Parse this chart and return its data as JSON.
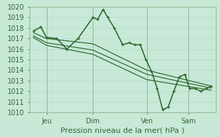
{
  "xlabel": "Pression niveau de la mer( hPa )",
  "bg_color": "#c8e8d8",
  "grid_color": "#b8d8c8",
  "line_color": "#2d6a2d",
  "ylim": [
    1010,
    1020
  ],
  "yticks": [
    1010,
    1011,
    1012,
    1013,
    1014,
    1015,
    1016,
    1017,
    1018,
    1019,
    1020
  ],
  "x_tick_positions": [
    0.09,
    0.34,
    0.63,
    0.855
  ],
  "x_tick_labels": [
    "Jeu",
    "Dim",
    "Ven",
    "Sam"
  ],
  "vline_positions": [
    0.09,
    0.34,
    0.63,
    0.855
  ],
  "series": [
    {
      "x": [
        0.02,
        0.06,
        0.09,
        0.145,
        0.2,
        0.26,
        0.34,
        0.365,
        0.395,
        0.42,
        0.455,
        0.5,
        0.535,
        0.565,
        0.595,
        0.625,
        0.655,
        0.685,
        0.715,
        0.745,
        0.775,
        0.805,
        0.835,
        0.86,
        0.89,
        0.92,
        0.95,
        0.975
      ],
      "y": [
        1017.7,
        1018.1,
        1017.1,
        1017.0,
        1016.0,
        1017.0,
        1019.0,
        1018.8,
        1019.75,
        1019.0,
        1018.0,
        1016.4,
        1016.6,
        1016.4,
        1016.4,
        1015.0,
        1013.9,
        1012.3,
        1010.25,
        1010.5,
        1012.0,
        1013.35,
        1013.6,
        1012.25,
        1012.25,
        1012.0,
        1012.25,
        1012.5
      ],
      "has_markers": true,
      "linewidth": 1.2
    },
    {
      "x": [
        0.02,
        0.09,
        0.34,
        0.63,
        0.975
      ],
      "y": [
        1017.55,
        1017.0,
        1016.5,
        1014.0,
        1012.5
      ],
      "has_markers": false,
      "linewidth": 0.9
    },
    {
      "x": [
        0.02,
        0.09,
        0.34,
        0.63,
        0.975
      ],
      "y": [
        1017.25,
        1016.6,
        1015.9,
        1013.6,
        1012.3
      ],
      "has_markers": false,
      "linewidth": 0.9
    },
    {
      "x": [
        0.02,
        0.09,
        0.34,
        0.63,
        0.975
      ],
      "y": [
        1017.1,
        1016.35,
        1015.5,
        1013.1,
        1012.1
      ],
      "has_markers": false,
      "linewidth": 0.9
    }
  ]
}
